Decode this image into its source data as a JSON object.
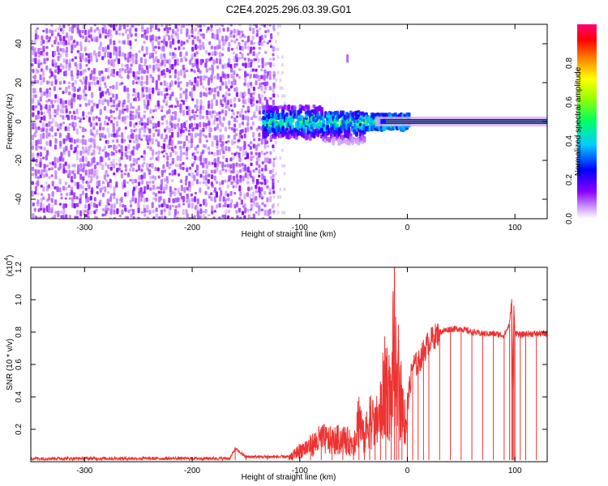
{
  "figure_title": "C2E4.2025.296.03.39.G01",
  "chart_data": [
    {
      "type": "heatmap",
      "title": "C2E4.2025.296.03.39.G01",
      "xlabel": "Height of straight line (km)",
      "ylabel": "Frequency (Hz)",
      "xlim": [
        -350,
        130
      ],
      "ylim": [
        -50,
        50
      ],
      "xticks": [
        -300,
        -200,
        -100,
        0,
        100
      ],
      "yticks": [
        -40,
        -20,
        0,
        20,
        40
      ],
      "colorbar": {
        "label": "Normalized spectral amplitude",
        "range": [
          0.0,
          1.0
        ],
        "ticks": [
          0.0,
          0.2,
          0.4,
          0.6,
          0.8
        ],
        "tick_labels": [
          "0.0",
          "0.2",
          "0.4",
          "0.6",
          "0.8"
        ],
        "colormap": [
          "#ffffff",
          "#8800ff",
          "#0000ff",
          "#00ffff",
          "#00ff00",
          "#ffff00",
          "#ff8800",
          "#ff0000",
          "#ff00aa"
        ]
      },
      "features": [
        {
          "name": "noise-field",
          "x_range": [
            -350,
            -125
          ],
          "freq_range": [
            -50,
            50
          ],
          "amplitude": 0.05
        },
        {
          "name": "signal-emergence",
          "x_range": [
            -135,
            -40
          ],
          "freq_center": 0,
          "freq_halfwidth": 8,
          "amplitude": 0.4
        },
        {
          "name": "stable-carrier",
          "x_range": [
            -20,
            130
          ],
          "freq_center": 0,
          "amplitude": 1.0
        },
        {
          "name": "blip",
          "x": -56,
          "freq": 32
        }
      ]
    },
    {
      "type": "line",
      "xlabel": "Height of straight line (km)",
      "ylabel": "SNR (10 * v/v)",
      "y_scale_label": "(x10",
      "y_scale_exp": "4",
      "xlim": [
        -350,
        130
      ],
      "ylim": [
        0,
        1.2
      ],
      "xticks": [
        -300,
        -200,
        -100,
        0,
        100
      ],
      "yticks": [
        0.2,
        0.4,
        0.6,
        0.8,
        1.0,
        1.2
      ],
      "ytick_labels": [
        "0.2",
        "0.4",
        "0.6",
        "0.8",
        "1.0",
        "1.2"
      ],
      "series": [
        {
          "name": "SNR",
          "color": "#ee3333",
          "x": [
            -350,
            -300,
            -200,
            -165,
            -160,
            -150,
            -130,
            -110,
            -100,
            -90,
            -80,
            -70,
            -60,
            -50,
            -45,
            -40,
            -35,
            -30,
            -25,
            -20,
            -15,
            -12,
            -10,
            -8,
            -5,
            0,
            5,
            10,
            15,
            20,
            30,
            40,
            50,
            60,
            70,
            80,
            90,
            95,
            97,
            98,
            99,
            100,
            105,
            110,
            120,
            130
          ],
          "values": [
            0.02,
            0.02,
            0.02,
            0.02,
            0.08,
            0.03,
            0.03,
            0.03,
            0.1,
            0.14,
            0.2,
            0.18,
            0.2,
            0.15,
            0.4,
            0.18,
            0.4,
            0.3,
            0.45,
            0.7,
            0.5,
            1.18,
            0.5,
            0.75,
            0.45,
            0.35,
            0.6,
            0.6,
            0.68,
            0.74,
            0.8,
            0.82,
            0.82,
            0.8,
            0.79,
            0.79,
            0.78,
            0.85,
            1.0,
            0.42,
            0.95,
            0.8,
            0.78,
            0.79,
            0.79,
            0.79
          ]
        }
      ]
    }
  ]
}
